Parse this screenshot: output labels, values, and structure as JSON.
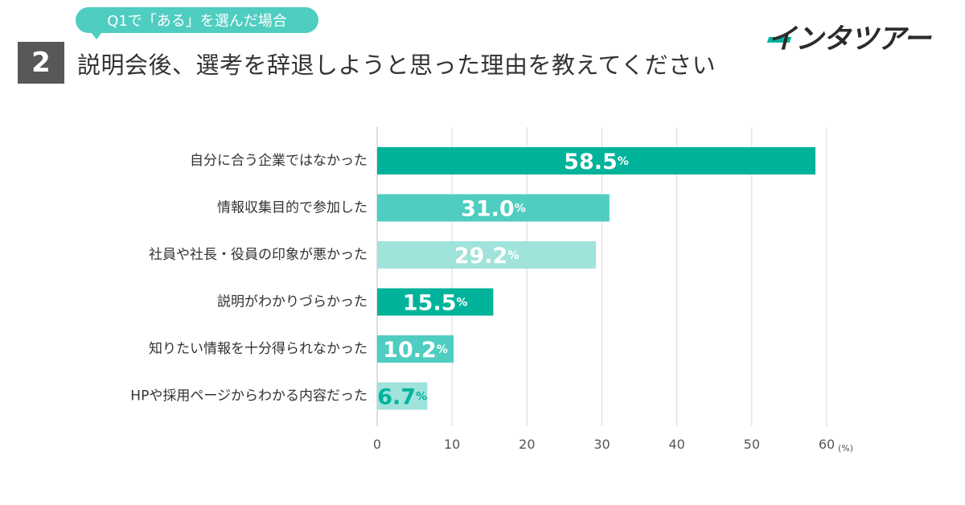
{
  "header": {
    "question_number": "2",
    "condition_badge": "Q1で「ある」を選んだ場合",
    "title": "説明会後、選考を辞退しようと思った理由を教えてください"
  },
  "logo": {
    "text": "インタツアー"
  },
  "chart_data": {
    "type": "bar",
    "orientation": "horizontal",
    "categories": [
      "自分に合う企業ではなかった",
      "情報収集目的で参加した",
      "社員や社長・役員の印象が悪かった",
      "説明がわかりづらかった",
      "知りたい情報を十分得られなかった",
      "HPや採用ページからわかる内容だった"
    ],
    "values": [
      58.5,
      31.0,
      29.2,
      15.5,
      10.2,
      6.7
    ],
    "value_labels": [
      "58.5",
      "31.0",
      "29.2",
      "15.5",
      "10.2",
      "6.7"
    ],
    "value_suffix": "%",
    "bar_colors": [
      "#00b39a",
      "#4ecdc0",
      "#9fe3db",
      "#00b39a",
      "#4ecdc0",
      "#9fe3db"
    ],
    "value_label_colors": [
      "#ffffff",
      "#ffffff",
      "#ffffff",
      "#ffffff",
      "#ffffff",
      "#00b39a"
    ],
    "xlim": [
      0,
      60
    ],
    "xticks": [
      0,
      10,
      20,
      30,
      40,
      50,
      60
    ],
    "xticks_labels": [
      "0",
      "10",
      "20",
      "30",
      "40",
      "50",
      "60"
    ],
    "x_unit": "(%)",
    "grid": true
  }
}
